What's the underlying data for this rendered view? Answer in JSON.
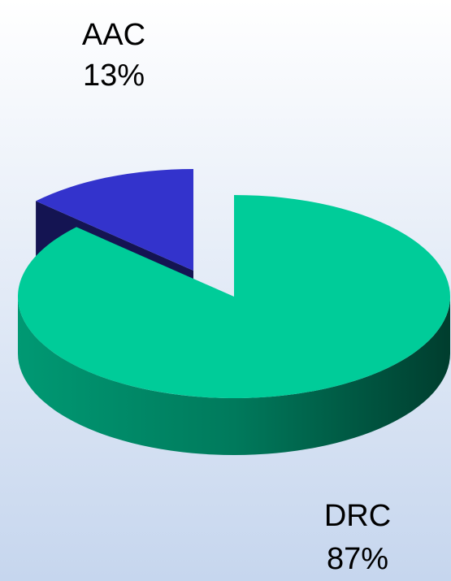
{
  "chart_data": {
    "type": "pie",
    "categories": [
      "AAC",
      "DRC"
    ],
    "values": [
      13,
      87
    ],
    "value_labels": [
      "13%",
      "87%"
    ],
    "colors": [
      "#3333cc",
      "#00cc99"
    ]
  }
}
